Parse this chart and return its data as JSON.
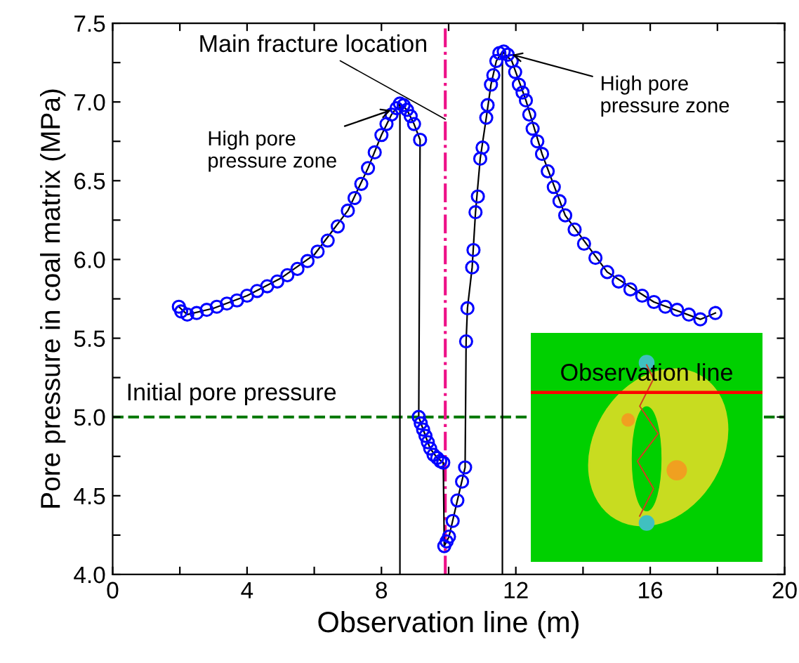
{
  "chart_data": {
    "type": "scatter",
    "xlabel": "Observation line (m)",
    "ylabel": "Pore pressure in coal matrix (MPa)",
    "xlim": [
      0,
      20
    ],
    "ylim": [
      4.0,
      7.5
    ],
    "xticks": [
      0,
      {
        "value": 2,
        "label": null
      },
      4,
      {
        "value": 6,
        "label": null
      },
      8,
      {
        "value": 10,
        "label": null
      },
      12,
      {
        "value": 14,
        "label": null
      },
      16,
      {
        "value": 18,
        "label": null
      },
      20
    ],
    "yticks": [
      {
        "value": 4,
        "label": "4.0"
      },
      {
        "value": 4.25,
        "label": null
      },
      4.5,
      {
        "value": 4.75,
        "label": null
      },
      {
        "value": 5,
        "label": "5.0"
      },
      {
        "value": 5.25,
        "label": null
      },
      5.5,
      {
        "value": 5.75,
        "label": null
      },
      {
        "value": 6,
        "label": "6.0"
      },
      {
        "value": 6.25,
        "label": null
      },
      6.5,
      {
        "value": 6.75,
        "label": null
      },
      {
        "value": 7,
        "label": "7.0"
      },
      {
        "value": 7.25,
        "label": null
      },
      7.5
    ],
    "grid": false,
    "legend": false,
    "series": [
      {
        "color": "#0000ff",
        "marker": "circle",
        "x": [
          1.97,
          2.04,
          2.22,
          2.5,
          2.8,
          3.1,
          3.4,
          3.7,
          4.0,
          4.3,
          4.6,
          4.9,
          5.2,
          5.5,
          5.8,
          6.1,
          6.4,
          6.7,
          7.0,
          7.2,
          7.4,
          7.6,
          7.8,
          8.0,
          8.15,
          8.3,
          8.45,
          8.55,
          8.66,
          8.76,
          8.87,
          8.97,
          9.15,
          9.11,
          9.17,
          9.24,
          9.31,
          9.38,
          9.45,
          9.55,
          9.66,
          9.75,
          9.84,
          9.87,
          9.94,
          10.01,
          10.12,
          10.26,
          10.4,
          10.49,
          10.52,
          10.56,
          10.7,
          10.74,
          10.8,
          10.87,
          10.94,
          11.01,
          11.12,
          11.16,
          11.26,
          11.33,
          11.42,
          11.51,
          11.64,
          11.76,
          11.88,
          11.98,
          12.09,
          12.2,
          12.3,
          12.4,
          12.5,
          12.64,
          12.78,
          12.95,
          13.13,
          13.3,
          13.47,
          13.75,
          14.03,
          14.37,
          14.72,
          15.06,
          15.41,
          15.76,
          16.11,
          16.45,
          16.8,
          17.15,
          17.49,
          17.94
        ],
        "values": [
          5.7,
          5.67,
          5.65,
          5.66,
          5.68,
          5.7,
          5.72,
          5.74,
          5.77,
          5.8,
          5.83,
          5.86,
          5.9,
          5.94,
          5.99,
          6.05,
          6.12,
          6.21,
          6.31,
          6.39,
          6.48,
          6.58,
          6.68,
          6.79,
          6.86,
          6.92,
          6.96,
          6.99,
          6.98,
          6.95,
          6.91,
          6.86,
          6.76,
          5.0,
          4.96,
          4.92,
          4.88,
          4.84,
          4.8,
          4.76,
          4.74,
          4.72,
          4.71,
          4.18,
          4.21,
          4.24,
          4.34,
          4.47,
          4.59,
          4.68,
          5.48,
          5.69,
          5.95,
          6.06,
          6.3,
          6.4,
          6.64,
          6.71,
          6.9,
          6.98,
          7.11,
          7.17,
          7.26,
          7.31,
          7.32,
          7.3,
          7.26,
          7.19,
          7.11,
          7.06,
          7.01,
          6.92,
          6.83,
          6.75,
          6.67,
          6.56,
          6.46,
          6.37,
          6.28,
          6.19,
          6.1,
          6.01,
          5.92,
          5.86,
          5.81,
          5.77,
          5.73,
          5.7,
          5.68,
          5.65,
          5.62,
          5.66
        ]
      },
      {
        "type": "line",
        "color": "#000000",
        "marker": "none",
        "line_style": "solid",
        "x": [
          1.97,
          2.22,
          3.0,
          4.0,
          5.0,
          6.0,
          7.0,
          7.6,
          8.0,
          8.3,
          8.55,
          8.55,
          8.55,
          8.76,
          8.97,
          9.15,
          9.11,
          9.31,
          9.45,
          9.66,
          9.84,
          9.87,
          10.01,
          10.26,
          10.49,
          10.52,
          10.56,
          10.7,
          10.8,
          10.94,
          11.12,
          11.26,
          11.42,
          11.6,
          11.6,
          11.6,
          11.88,
          12.3,
          12.78,
          13.47,
          14.72,
          16.11,
          17.49,
          17.94
        ],
        "values": [
          5.7,
          5.65,
          5.69,
          5.77,
          5.88,
          6.03,
          6.31,
          6.58,
          6.79,
          6.92,
          6.99,
          4.0,
          6.99,
          6.95,
          6.86,
          6.76,
          5.0,
          4.88,
          4.8,
          4.74,
          4.71,
          4.18,
          4.24,
          4.47,
          4.68,
          5.48,
          5.69,
          5.95,
          6.3,
          6.64,
          6.9,
          7.11,
          7.26,
          7.32,
          4.0,
          7.32,
          7.26,
          7.01,
          6.67,
          6.28,
          5.92,
          5.73,
          5.62,
          5.66
        ]
      }
    ],
    "ref_lines": [
      {
        "axis": "y",
        "value": 5.0,
        "label": "Initial pore pressure",
        "color": "#007700",
        "line_style": "dashed"
      },
      {
        "axis": "x",
        "value": 9.9,
        "label": "Main fracture location",
        "color": "#ee1188",
        "line_style": "dashdot"
      }
    ],
    "annotations": [
      {
        "text": "High pore\npressure zone",
        "x": 8.45,
        "y": 6.96
      },
      {
        "text": "High pore\npressure zone",
        "x": 11.72,
        "y": 7.31
      },
      "Observation line"
    ]
  }
}
